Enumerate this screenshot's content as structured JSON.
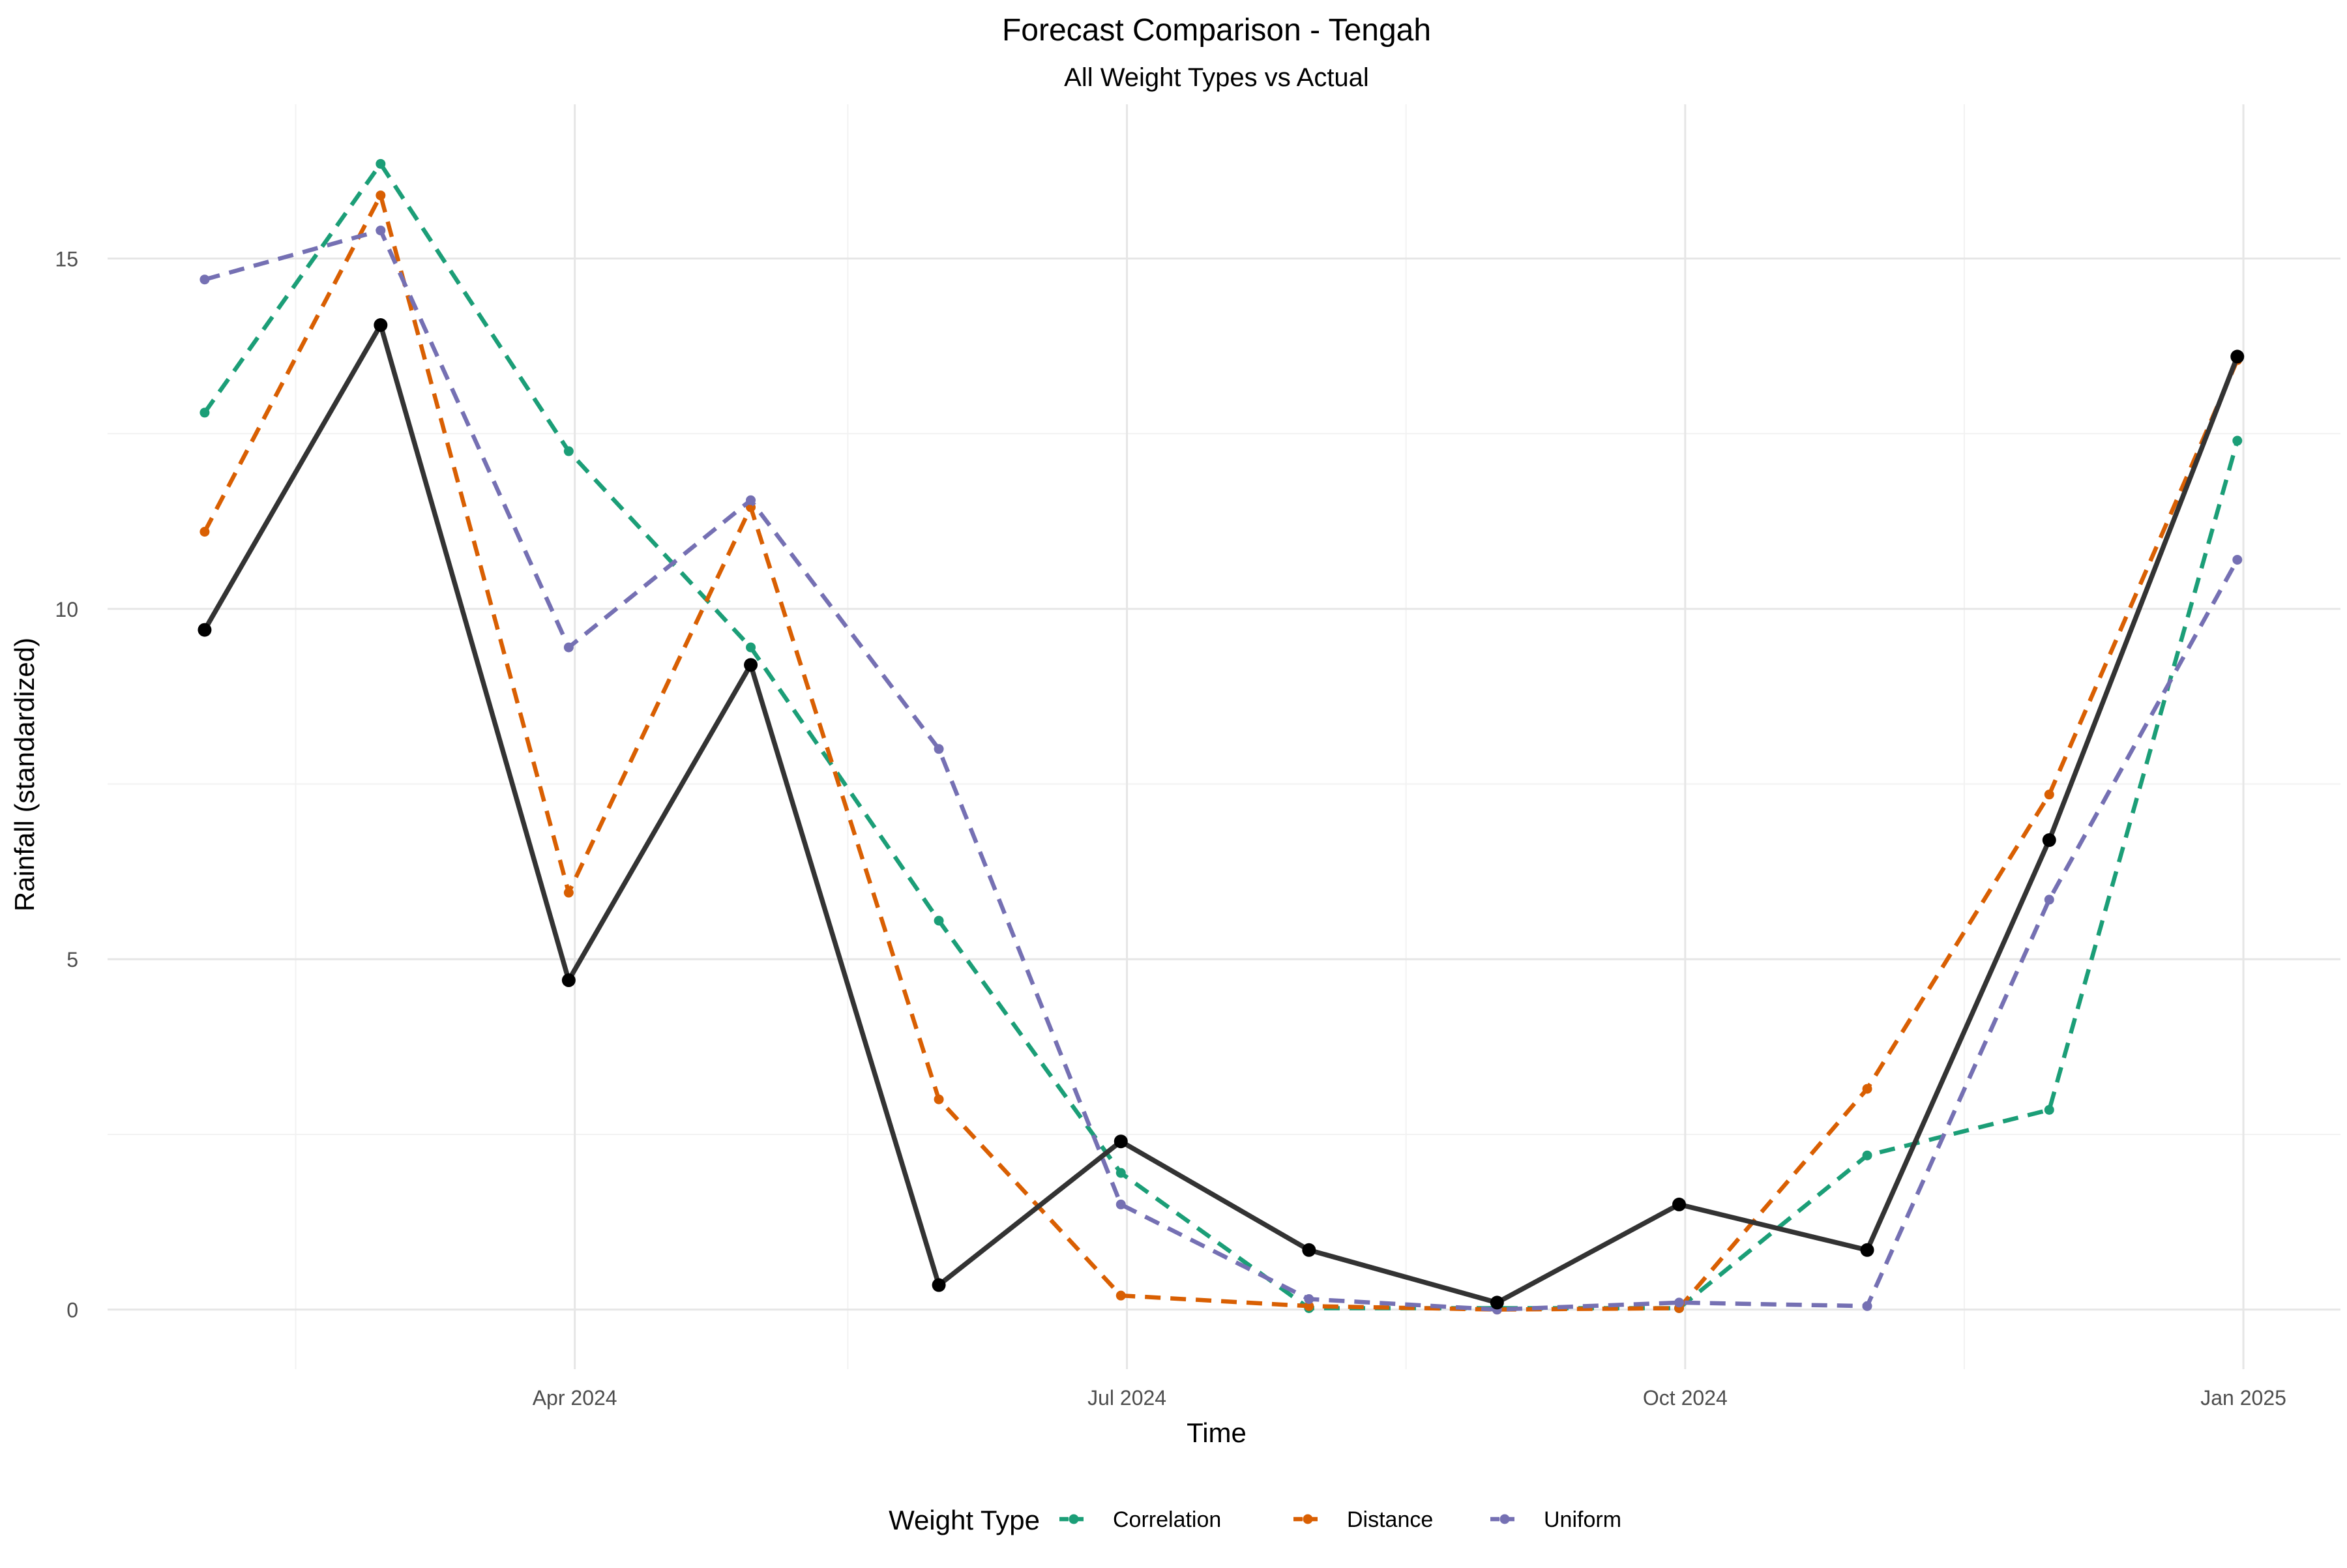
{
  "chart_data": {
    "type": "line",
    "title": "Forecast Comparison - Tengah",
    "subtitle": "All Weight Types vs Actual",
    "xlabel": "Time",
    "ylabel": "Rainfall (standardized)",
    "x": [
      "2024-01-31",
      "2024-02-29",
      "2024-03-31",
      "2024-04-30",
      "2024-05-31",
      "2024-06-30",
      "2024-07-31",
      "2024-08-31",
      "2024-09-30",
      "2024-10-31",
      "2024-11-30",
      "2024-12-31"
    ],
    "x_ticks": [
      {
        "date": "2024-04-01",
        "label": "Apr 2024"
      },
      {
        "date": "2024-07-01",
        "label": "Jul 2024"
      },
      {
        "date": "2024-10-01",
        "label": "Oct 2024"
      },
      {
        "date": "2025-01-01",
        "label": "Jan 2025"
      }
    ],
    "x_minor_ticks": [
      "2024-02-15",
      "2024-05-16",
      "2024-08-16",
      "2024-11-16"
    ],
    "xlim": [
      "2024-01-15",
      "2025-01-17"
    ],
    "y_ticks": [
      0,
      5,
      10,
      15
    ],
    "ylim": [
      -0.85,
      17.2
    ],
    "grid": true,
    "legend": {
      "title": "Weight Type",
      "position": "bottom",
      "entries": [
        "Correlation",
        "Distance",
        "Uniform"
      ]
    },
    "actual": {
      "color": "#333333",
      "point_color": "#000000",
      "values": [
        9.7,
        14.05,
        4.7,
        9.2,
        0.35,
        2.4,
        0.85,
        0.1,
        1.5,
        0.85,
        6.7,
        13.6
      ]
    },
    "series": [
      {
        "name": "Correlation",
        "color": "#1B9E77",
        "values": [
          12.8,
          16.35,
          12.25,
          9.45,
          5.55,
          1.95,
          0.02,
          0.02,
          0.02,
          2.2,
          2.85,
          12.4
        ]
      },
      {
        "name": "Distance",
        "color": "#D95F02",
        "values": [
          11.1,
          15.9,
          5.95,
          11.45,
          3.0,
          0.2,
          0.05,
          0.0,
          0.02,
          3.15,
          7.35,
          13.55
        ]
      },
      {
        "name": "Uniform",
        "color": "#7570B3",
        "values": [
          14.7,
          15.4,
          9.45,
          11.55,
          8.0,
          1.5,
          0.15,
          0.0,
          0.1,
          0.05,
          5.85,
          10.7
        ]
      }
    ]
  }
}
